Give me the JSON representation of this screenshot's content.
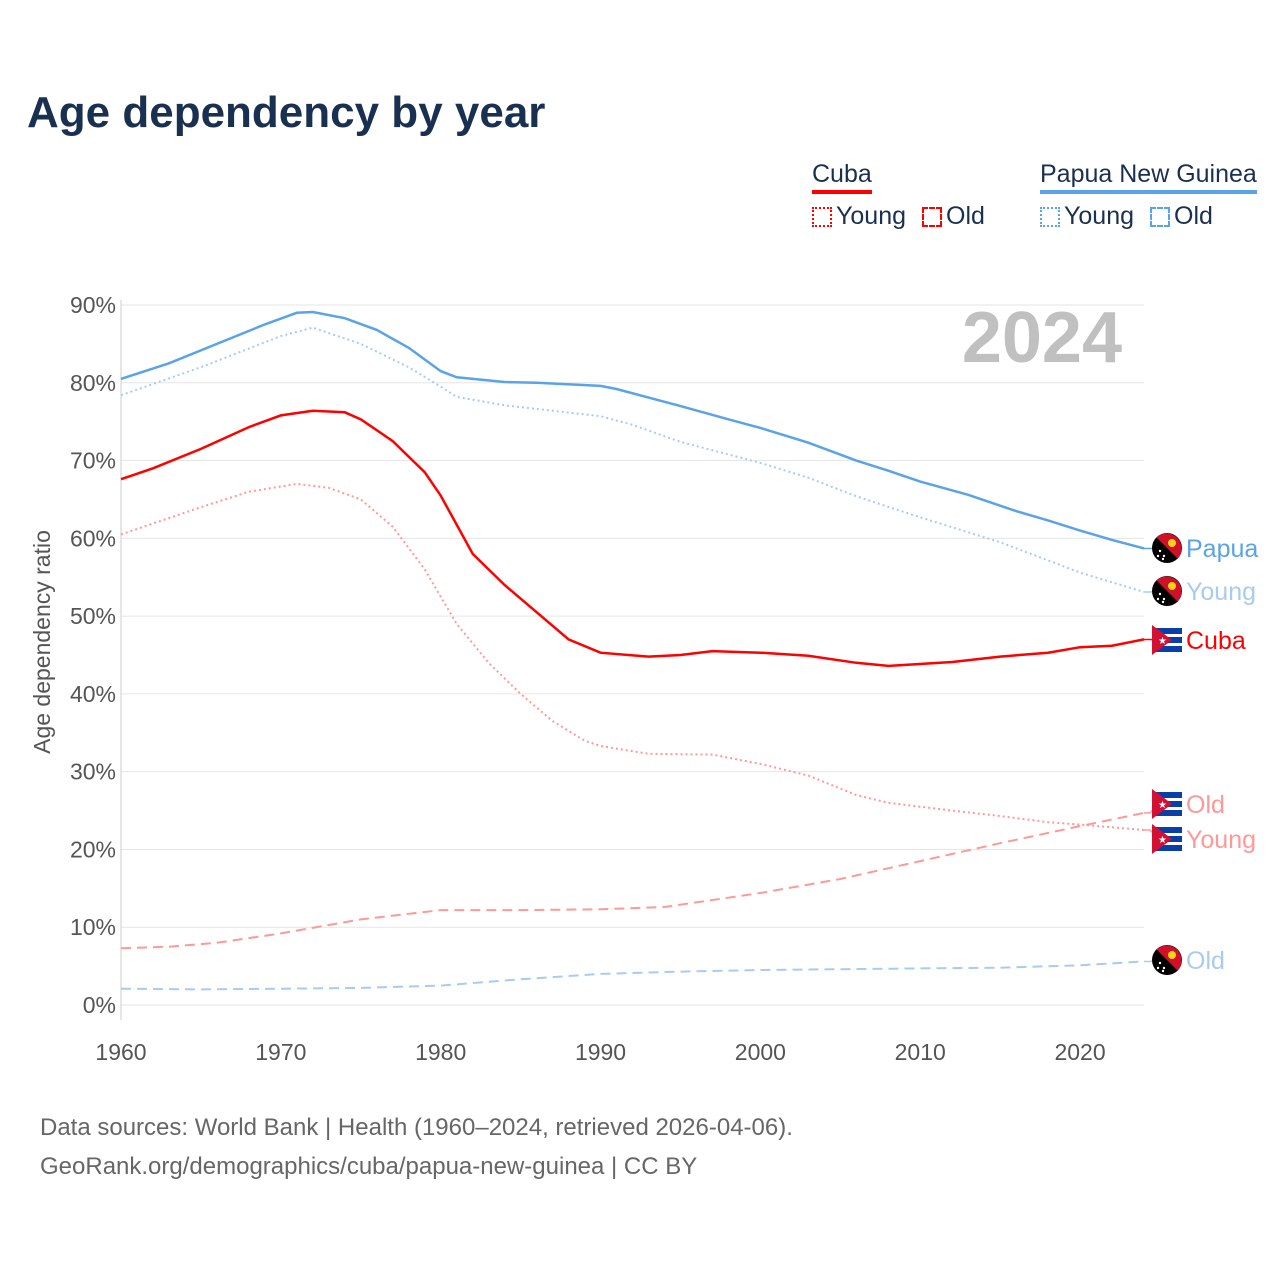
{
  "title": "Age dependency by year",
  "year_badge": "2024",
  "legend": {
    "groups": [
      {
        "name": "Cuba",
        "color": "#ff0000",
        "light": "#ff9999",
        "young": "Young",
        "old": "Old"
      },
      {
        "name": "Papua New Guinea",
        "color": "#5aa3e8",
        "light": "#a8cbf0",
        "young": "Young",
        "old": "Old"
      }
    ]
  },
  "source_lines": [
    "Data sources: World Bank | Health (1960–2024, retrieved 2026-04-06).",
    "GeoRank.org/demographics/cuba/papua-new-guinea | CC BY"
  ],
  "chart_data": {
    "type": "line",
    "title": "Age dependency by year",
    "xlabel": "",
    "ylabel": "Age dependency ratio",
    "xlim": [
      1960,
      2024
    ],
    "ylim": [
      0,
      90
    ],
    "xticks": [
      1960,
      1970,
      1980,
      1990,
      2000,
      2010,
      2020
    ],
    "yticks": [
      "0%",
      "10%",
      "20%",
      "30%",
      "40%",
      "50%",
      "60%",
      "70%",
      "80%",
      "90%"
    ],
    "grid": true,
    "series": [
      {
        "name": "Papua New Guinea",
        "end_label": "Papua",
        "style": "solid",
        "color": "#5aa3e8",
        "flag": "png",
        "points": [
          [
            1960,
            80.5
          ],
          [
            1963,
            82.5
          ],
          [
            1966,
            85
          ],
          [
            1969,
            87.5
          ],
          [
            1971,
            89
          ],
          [
            1972,
            89.1
          ],
          [
            1974,
            88.3
          ],
          [
            1976,
            86.8
          ],
          [
            1978,
            84.5
          ],
          [
            1980,
            81.5
          ],
          [
            1981,
            80.7
          ],
          [
            1984,
            80.1
          ],
          [
            1986,
            80
          ],
          [
            1990,
            79.6
          ],
          [
            1991,
            79.2
          ],
          [
            1995,
            77
          ],
          [
            1998,
            75.3
          ],
          [
            2000,
            74.2
          ],
          [
            2003,
            72.3
          ],
          [
            2006,
            70
          ],
          [
            2008,
            68.7
          ],
          [
            2010,
            67.3
          ],
          [
            2013,
            65.6
          ],
          [
            2016,
            63.5
          ],
          [
            2018,
            62.3
          ],
          [
            2020,
            61
          ],
          [
            2022,
            59.8
          ],
          [
            2024,
            58.7
          ]
        ]
      },
      {
        "name": "Papua New Guinea Young",
        "end_label": "Young",
        "style": "dotted",
        "color": "#a8cbf0",
        "flag": "png",
        "points": [
          [
            1960,
            78.4
          ],
          [
            1965,
            82
          ],
          [
            1970,
            86
          ],
          [
            1972,
            87.1
          ],
          [
            1975,
            85
          ],
          [
            1978,
            82
          ],
          [
            1980,
            79.5
          ],
          [
            1981,
            78.2
          ],
          [
            1984,
            77.1
          ],
          [
            1990,
            75.7
          ],
          [
            1992,
            74.6
          ],
          [
            1995,
            72.4
          ],
          [
            2000,
            69.7
          ],
          [
            2003,
            67.8
          ],
          [
            2006,
            65.4
          ],
          [
            2010,
            62.7
          ],
          [
            2015,
            59.5
          ],
          [
            2020,
            55.6
          ],
          [
            2024,
            53.1
          ]
        ]
      },
      {
        "name": "Cuba",
        "end_label": "Cuba",
        "style": "solid",
        "color": "#ff0000",
        "flag": "cuba",
        "points": [
          [
            1960,
            67.6
          ],
          [
            1962,
            69
          ],
          [
            1965,
            71.5
          ],
          [
            1968,
            74.3
          ],
          [
            1970,
            75.8
          ],
          [
            1972,
            76.4
          ],
          [
            1974,
            76.2
          ],
          [
            1975,
            75.3
          ],
          [
            1977,
            72.5
          ],
          [
            1979,
            68.5
          ],
          [
            1980,
            65.5
          ],
          [
            1982,
            58
          ],
          [
            1984,
            54
          ],
          [
            1986,
            50.5
          ],
          [
            1988,
            47
          ],
          [
            1990,
            45.3
          ],
          [
            1993,
            44.8
          ],
          [
            1995,
            45
          ],
          [
            1997,
            45.5
          ],
          [
            2000,
            45.3
          ],
          [
            2003,
            44.9
          ],
          [
            2006,
            44
          ],
          [
            2008,
            43.6
          ],
          [
            2012,
            44.1
          ],
          [
            2015,
            44.8
          ],
          [
            2018,
            45.3
          ],
          [
            2020,
            46
          ],
          [
            2022,
            46.2
          ],
          [
            2024,
            47
          ]
        ]
      },
      {
        "name": "Cuba Old",
        "end_label": "Old",
        "style": "dashed",
        "color": "#ff9999",
        "flag": "cuba",
        "points": [
          [
            1960,
            7.3
          ],
          [
            1963,
            7.5
          ],
          [
            1966,
            8
          ],
          [
            1970,
            9.2
          ],
          [
            1975,
            11
          ],
          [
            1980,
            12.2
          ],
          [
            1985,
            12.2
          ],
          [
            1990,
            12.3
          ],
          [
            1994,
            12.6
          ],
          [
            2000,
            14.4
          ],
          [
            2005,
            16.2
          ],
          [
            2010,
            18.5
          ],
          [
            2015,
            20.8
          ],
          [
            2020,
            23
          ],
          [
            2024,
            24.7
          ]
        ]
      },
      {
        "name": "Cuba Young",
        "end_label": "Young",
        "style": "dotted",
        "color": "#ff9999",
        "flag": "cuba",
        "points": [
          [
            1960,
            60.5
          ],
          [
            1965,
            64
          ],
          [
            1968,
            66
          ],
          [
            1971,
            67
          ],
          [
            1973,
            66.5
          ],
          [
            1975,
            65
          ],
          [
            1977,
            61.5
          ],
          [
            1979,
            56
          ],
          [
            1981,
            49
          ],
          [
            1983,
            44
          ],
          [
            1985,
            40
          ],
          [
            1987,
            36.5
          ],
          [
            1989,
            34
          ],
          [
            1990,
            33.3
          ],
          [
            1993,
            32.3
          ],
          [
            1997,
            32.2
          ],
          [
            2000,
            31
          ],
          [
            2003,
            29.5
          ],
          [
            2006,
            27
          ],
          [
            2008,
            26
          ],
          [
            2012,
            25
          ],
          [
            2015,
            24.3
          ],
          [
            2018,
            23.5
          ],
          [
            2020,
            23.2
          ],
          [
            2024,
            22.5
          ]
        ]
      },
      {
        "name": "Papua New Guinea Old",
        "end_label": "Old",
        "style": "dashed",
        "color": "#a8cbf0",
        "flag": "png",
        "points": [
          [
            1960,
            2.1
          ],
          [
            1965,
            2.0
          ],
          [
            1970,
            2.1
          ],
          [
            1975,
            2.2
          ],
          [
            1980,
            2.5
          ],
          [
            1985,
            3.3
          ],
          [
            1990,
            4.0
          ],
          [
            1995,
            4.3
          ],
          [
            2000,
            4.5
          ],
          [
            2010,
            4.7
          ],
          [
            2015,
            4.8
          ],
          [
            2020,
            5.1
          ],
          [
            2024,
            5.6
          ]
        ]
      }
    ]
  }
}
